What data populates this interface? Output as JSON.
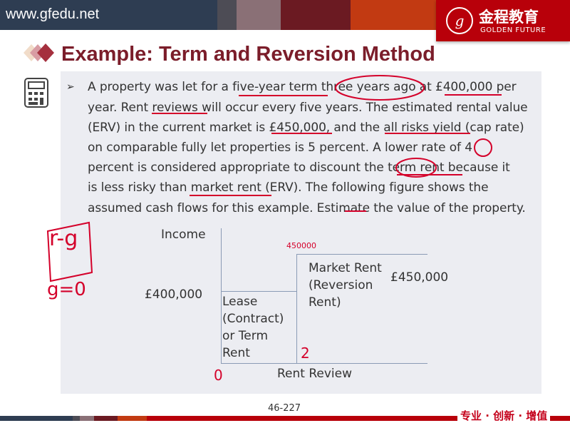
{
  "header": {
    "url": "www.gfedu.net",
    "logo_cn": "金程教育",
    "logo_en": "GOLDEN FUTURE",
    "brand_color": "#b8000a"
  },
  "title": "Example: Term and Reversion Method",
  "body_lines": [
    "A property was let for a five-year term three years ago at £400,000 per",
    "year. Rent reviews will occur every five years. The estimated rental value",
    "(ERV) in the current market is £450,000, and the all risks yield (cap rate)",
    "on comparable fully let properties is 5 percent. A lower rate of 4",
    "percent is considered appropriate to discount the term rent because it",
    "is less risky than market rent (ERV). The following figure shows the",
    "assumed cash flows for this example. Estimate the value of the property."
  ],
  "figure": {
    "y_label": "Income",
    "term_value": "£400,000",
    "reversion_value": "£450,000",
    "term_label": [
      "Lease",
      "(Contract)",
      "or Term",
      "Rent"
    ],
    "reversion_label": [
      "Market Rent",
      "(Reversion",
      "Rent)"
    ],
    "x_label": "Rent Review"
  },
  "annotations": {
    "formula": "r-g",
    "g": "g=0",
    "value": "450000",
    "zero": "0",
    "two": "2"
  },
  "footer": {
    "page": "46-227",
    "slogan": "专业 · 创新 · 增值"
  }
}
